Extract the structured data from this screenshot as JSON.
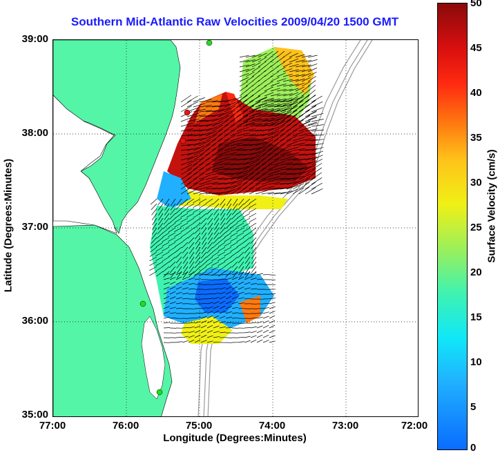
{
  "map": {
    "title": "Southern Mid-Atlantic Raw Velocities 2009/04/20 1500 GMT",
    "xlabel": "Longitude (Degrees:Minutes)",
    "ylabel": "Latitude (Degrees:Minutes)",
    "lon_ticks": [
      "77:00",
      "76:00",
      "75:00",
      "74:00",
      "73:00",
      "72:00"
    ],
    "lat_ticks": [
      "39:00",
      "38:00",
      "37:00",
      "36:00",
      "35:00"
    ],
    "lon_range": [
      -77,
      -72
    ],
    "lat_range": [
      35,
      39
    ],
    "colorbar": {
      "label": "Surface Velocity (cm/s)",
      "ticks": [
        "50",
        "45",
        "40",
        "35",
        "30",
        "25",
        "20",
        "15",
        "10",
        "5",
        "0"
      ],
      "range": [
        0,
        50
      ]
    },
    "colors": {
      "land": "#55f5a8",
      "water": "#ffffff",
      "title": "#1a1aff",
      "bathymetry": "#999999",
      "station_green": "#22dd22",
      "station_red": "#ee1111"
    }
  }
}
